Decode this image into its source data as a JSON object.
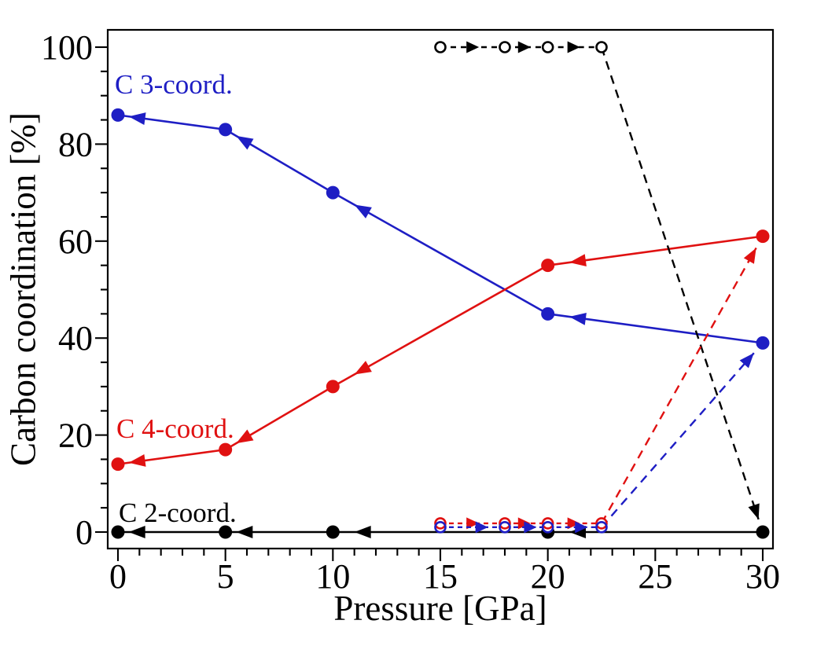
{
  "chart_data": {
    "type": "scatter",
    "title": "",
    "xlabel": "Pressure [GPa]",
    "ylabel": "Carbon coordination [%]",
    "xlim": [
      0,
      30
    ],
    "ylim": [
      0,
      100
    ],
    "xticks": [
      0,
      5,
      10,
      15,
      20,
      25,
      30
    ],
    "yticks": [
      0,
      20,
      40,
      60,
      80,
      100
    ],
    "minor_x_step": 1,
    "minor_y_step": 5,
    "grid": false,
    "legend_position": "none",
    "colors": {
      "c2": "#000000",
      "c3": "#1e1ec4",
      "c4": "#e01111"
    },
    "series": [
      {
        "id": "decomp-c3",
        "name": "C 3-coord. decompression",
        "color": "c3",
        "style": "solid",
        "marker": "filled-circle",
        "arrow": "along-path",
        "points": [
          [
            30,
            39
          ],
          [
            20,
            45
          ],
          [
            10,
            70
          ],
          [
            5,
            83
          ],
          [
            0,
            86
          ]
        ]
      },
      {
        "id": "decomp-c4",
        "name": "C 4-coord. decompression",
        "color": "c4",
        "style": "solid",
        "marker": "filled-circle",
        "arrow": "along-path",
        "points": [
          [
            30,
            61
          ],
          [
            20,
            55
          ],
          [
            10,
            30
          ],
          [
            5,
            17
          ],
          [
            0,
            14
          ]
        ]
      },
      {
        "id": "decomp-c2",
        "name": "C 2-coord. decompression",
        "color": "c2",
        "style": "solid",
        "marker": "filled-circle",
        "arrow": "along-path",
        "points": [
          [
            30,
            0
          ],
          [
            20,
            0
          ],
          [
            10,
            0
          ],
          [
            5,
            0
          ],
          [
            0,
            0
          ]
        ]
      },
      {
        "id": "comp-c2",
        "name": "C 2-coord. compression",
        "color": "c2",
        "style": "dashed",
        "marker": "open-circle",
        "arrow": "along-path",
        "points": [
          [
            15,
            100
          ],
          [
            18,
            100
          ],
          [
            20,
            100
          ],
          [
            22.5,
            100
          ]
        ],
        "transition_to": [
          30,
          0
        ]
      },
      {
        "id": "comp-c4",
        "name": "C 4-coord. compression",
        "color": "c4",
        "style": "dashed",
        "marker": "open-circle",
        "arrow": "along-path",
        "points": [
          [
            15,
            1.8
          ],
          [
            18,
            1.8
          ],
          [
            20,
            1.8
          ],
          [
            22.5,
            1.8
          ]
        ],
        "transition_to": [
          30,
          61
        ]
      },
      {
        "id": "comp-c3",
        "name": "C 3-coord. compression",
        "color": "c3",
        "style": "dashed",
        "marker": "open-circle",
        "arrow": "along-path",
        "points": [
          [
            15,
            1
          ],
          [
            18,
            1
          ],
          [
            20,
            1
          ],
          [
            22.5,
            1
          ]
        ],
        "transition_to": [
          30,
          39
        ]
      }
    ],
    "annotations": [
      {
        "id": "label-c3",
        "text": "C 3-coord.",
        "color": "c3"
      },
      {
        "id": "label-c4",
        "text": "C 4-coord.",
        "color": "c4"
      },
      {
        "id": "label-c2",
        "text": "C 2-coord.",
        "color": "c2"
      }
    ]
  }
}
